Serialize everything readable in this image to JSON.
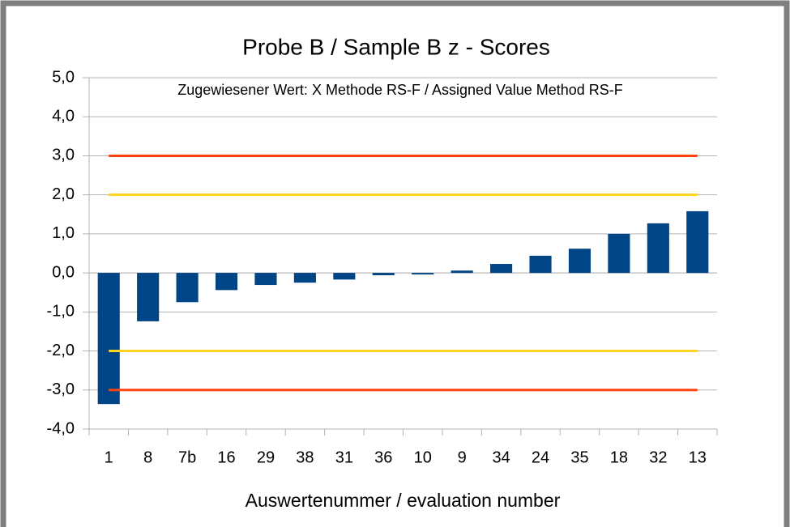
{
  "chart_data": {
    "type": "bar",
    "title": "Probe B / Sample B z - Scores",
    "annotation": "Zugewiesener Wert: X Methode RS-F / Assigned Value Method RS-F",
    "x_label": "Auswertenummer / evaluation number",
    "categories": [
      "1",
      "8",
      "7b",
      "16",
      "29",
      "38",
      "31",
      "36",
      "10",
      "9",
      "34",
      "24",
      "35",
      "18",
      "32",
      "13"
    ],
    "values": [
      -3.36,
      -1.24,
      -0.75,
      -0.44,
      -0.31,
      -0.25,
      -0.17,
      -0.06,
      -0.04,
      0.06,
      0.23,
      0.44,
      0.62,
      1.0,
      1.27,
      1.58
    ],
    "color": "#004586",
    "reference_lines": [
      {
        "value": 3,
        "color": "#ff420e"
      },
      {
        "value": 2,
        "color": "#ffd320"
      },
      {
        "value": -2,
        "color": "#ffd320"
      },
      {
        "value": -3,
        "color": "#ff420e"
      }
    ],
    "ylim": [
      -4,
      5
    ],
    "yticks": [
      {
        "value": -4,
        "label": "-4,0"
      },
      {
        "value": -3,
        "label": "-3,0"
      },
      {
        "value": -2,
        "label": "-2,0"
      },
      {
        "value": -1,
        "label": "-1,0"
      },
      {
        "value": 0,
        "label": "0,0"
      },
      {
        "value": 1,
        "label": "1,0"
      },
      {
        "value": 2,
        "label": "2,0"
      },
      {
        "value": 3,
        "label": "3,0"
      },
      {
        "value": 4,
        "label": "4,0"
      },
      {
        "value": 5,
        "label": "5,0"
      }
    ],
    "grid": true
  }
}
